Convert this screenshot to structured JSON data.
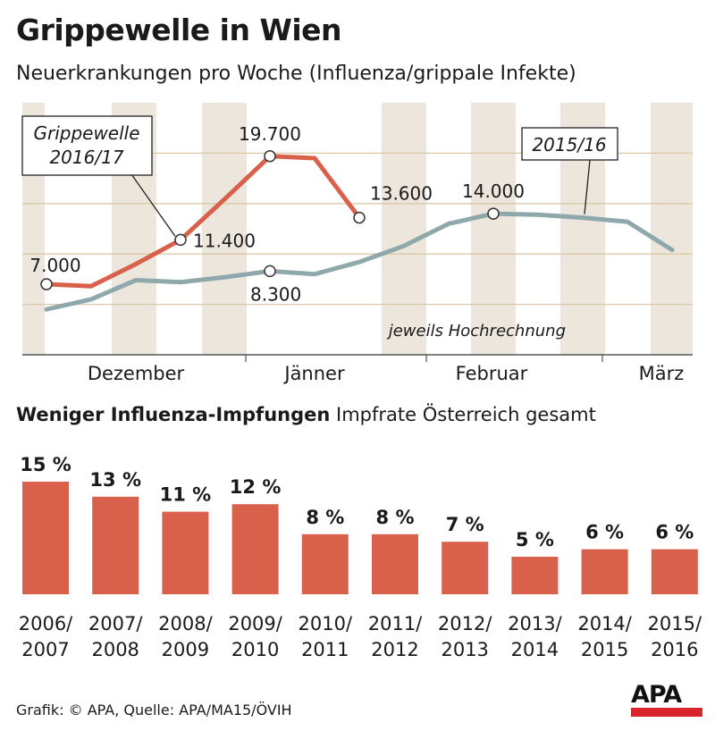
{
  "header": {
    "title": "Grippewelle in Wien",
    "subtitle": "Neuerkrankungen pro Woche (Influenza/grippale Infekte)"
  },
  "chart_data": [
    {
      "type": "line",
      "x_months": [
        "Dezember",
        "Jänner",
        "Februar",
        "März"
      ],
      "ylim": [
        0,
        25000
      ],
      "grid": true,
      "annotation_note": "jeweils Hochrechnung",
      "colors": {
        "2016/17": "#d9604a",
        "2015/16": "#8fa8ab",
        "stripes": "#ece6dc"
      },
      "series": [
        {
          "name": "Grippewelle 2016/17",
          "callout": [
            "Grippewelle",
            "2016/17"
          ],
          "x": [
            0,
            1,
            2,
            3,
            4,
            5,
            6,
            7
          ],
          "y": [
            7000,
            6800,
            9000,
            11400,
            15500,
            19700,
            19500,
            13600
          ],
          "labels": [
            {
              "i": 0,
              "text": "7.000"
            },
            {
              "i": 3,
              "text": "11.400"
            },
            {
              "i": 5,
              "text": "19.700"
            },
            {
              "i": 7,
              "text": "13.600"
            }
          ],
          "markers": [
            0,
            3,
            5,
            7
          ]
        },
        {
          "name": "2015/16",
          "callout": [
            "2015/16"
          ],
          "x": [
            0,
            1,
            2,
            3,
            4,
            5,
            6,
            7,
            8,
            9,
            10,
            11,
            12,
            13,
            14
          ],
          "y": [
            4500,
            5500,
            7400,
            7200,
            7700,
            8300,
            8000,
            9200,
            10800,
            13000,
            14000,
            13900,
            13600,
            13200,
            10400
          ],
          "labels": [
            {
              "i": 5,
              "text": "8.300"
            },
            {
              "i": 10,
              "text": "14.000"
            }
          ],
          "markers": [
            5,
            10
          ]
        }
      ]
    },
    {
      "type": "bar",
      "title": "Weniger Influenza-Impfungen",
      "subtitle": "Impfrate Österreich gesamt",
      "color": "#d9604a",
      "categories": [
        [
          "2006/",
          "2007"
        ],
        [
          "2007/",
          "2008"
        ],
        [
          "2008/",
          "2009"
        ],
        [
          "2009/",
          "2010"
        ],
        [
          "2010/",
          "2011"
        ],
        [
          "2011/",
          "2012"
        ],
        [
          "2012/",
          "2013"
        ],
        [
          "2013/",
          "2014"
        ],
        [
          "2014/",
          "2015"
        ],
        [
          "2015/",
          "2016"
        ]
      ],
      "values": [
        15,
        13,
        11,
        12,
        8,
        8,
        7,
        5,
        6,
        6
      ],
      "value_labels": [
        "15 %",
        "13 %",
        "11 %",
        "12 %",
        "8 %",
        "8 %",
        "7 %",
        "5 %",
        "6 %",
        "6 %"
      ],
      "unit": "%"
    }
  ],
  "footer": {
    "source": "Grafik: © APA, Quelle: APA/MA15/ÖVIH"
  },
  "logo": {
    "text": "APA",
    "accent": "#d9242b"
  }
}
